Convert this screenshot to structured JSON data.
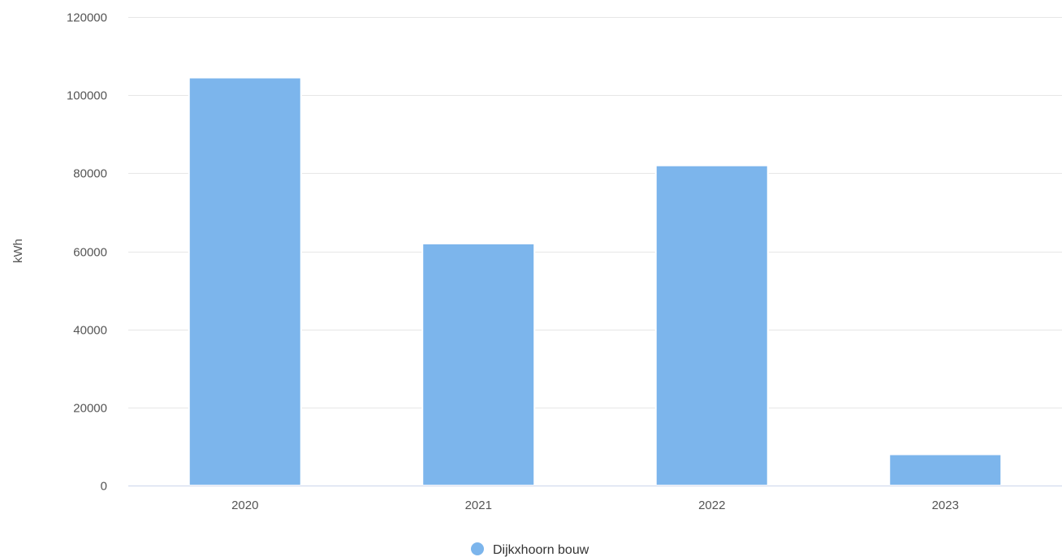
{
  "colors": {
    "bar": "#7cb5ec",
    "grid": "#e6e6e6",
    "axis": "#ccd6eb",
    "text": "#555555"
  },
  "chart_data": {
    "type": "bar",
    "categories": [
      "2020",
      "2021",
      "2022",
      "2023"
    ],
    "series": [
      {
        "name": "Dijkxhoorn bouw",
        "values": [
          104500,
          62000,
          82000,
          8000
        ]
      }
    ],
    "title": "",
    "xlabel": "",
    "ylabel": "kWh",
    "ylim": [
      0,
      120000
    ],
    "yticks": [
      "0",
      "20000",
      "40000",
      "60000",
      "80000",
      "100000",
      "120000"
    ],
    "grid": true,
    "legend": "bottom-center"
  }
}
